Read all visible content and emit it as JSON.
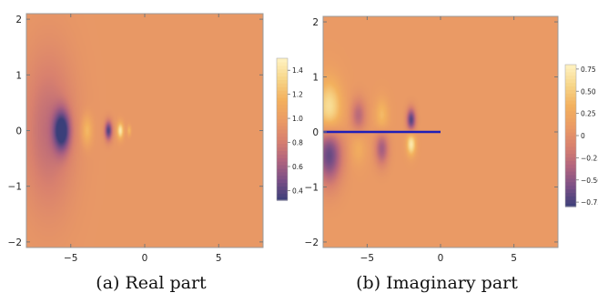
{
  "colors": {
    "colormap": [
      "#3a3f7a",
      "#7a4f86",
      "#b2647e",
      "#d9816e",
      "#eb9c64",
      "#f3b15e",
      "#f7d689",
      "#fff3c2"
    ],
    "frame": "#9a9a9a",
    "branch_cut": "#1f1fb8"
  },
  "chart_data": [
    {
      "type": "heatmap",
      "title": "",
      "caption": "(a) Real part",
      "xlim": [
        -8,
        8
      ],
      "ylim": [
        -2.1,
        2.1
      ],
      "xticks": [
        -5,
        0,
        5
      ],
      "yticks": [
        -2,
        -1,
        0,
        1,
        2
      ],
      "xtick_labels": [
        "−5",
        "0",
        "5"
      ],
      "ytick_labels": [
        "−2",
        "−1",
        "0",
        "1",
        "2"
      ],
      "background_value": 0.97,
      "features": [
        {
          "x": -5.6,
          "y": 0,
          "value": 0.33,
          "sx": 0.55,
          "sy": 0.36
        },
        {
          "x": -2.45,
          "y": 0,
          "value": 0.38,
          "sx": 0.25,
          "sy": 0.17
        },
        {
          "x": -3.9,
          "y": 0,
          "value": 1.22,
          "sx": 0.35,
          "sy": 0.26
        },
        {
          "x": -1.65,
          "y": 0,
          "value": 1.45,
          "sx": 0.2,
          "sy": 0.14
        },
        {
          "x": -1.05,
          "y": 0,
          "value": 1.2,
          "sx": 0.12,
          "sy": 0.09
        },
        {
          "x": -6.5,
          "y": 0,
          "value": 0.72,
          "sx": 1.7,
          "sy": 1.35
        }
      ],
      "colorbar": {
        "min": 0.32,
        "max": 1.5,
        "ticks": [
          0.4,
          0.6,
          0.8,
          1.0,
          1.2,
          1.4
        ],
        "tick_labels": [
          "0.4",
          "0.6",
          "0.8",
          "1.0",
          "1.2",
          "1.4"
        ]
      }
    },
    {
      "type": "heatmap",
      "title": "",
      "caption": "(b) Imaginary part",
      "xlim": [
        -8,
        8
      ],
      "ylim": [
        -2.1,
        2.1
      ],
      "xticks": [
        -5,
        0,
        5
      ],
      "yticks": [
        -2,
        -1,
        0,
        1,
        2
      ],
      "xtick_labels": [
        "−5",
        "0",
        "5"
      ],
      "ytick_labels": [
        "−2",
        "−1",
        "0",
        "1",
        "2"
      ],
      "background_value": 0.1,
      "features": [
        {
          "x": -7.6,
          "y": 0.35,
          "value": 0.75,
          "sx": 0.85,
          "sy": 0.55
        },
        {
          "x": -7.6,
          "y": -0.35,
          "value": -0.75,
          "sx": 0.85,
          "sy": 0.55
        },
        {
          "x": -4.0,
          "y": 0.3,
          "value": 0.4,
          "sx": 0.45,
          "sy": 0.3
        },
        {
          "x": -4.0,
          "y": -0.3,
          "value": -0.4,
          "sx": 0.45,
          "sy": 0.3
        },
        {
          "x": -2.0,
          "y": 0.22,
          "value": -0.7,
          "sx": 0.3,
          "sy": 0.2
        },
        {
          "x": -2.0,
          "y": -0.22,
          "value": 0.72,
          "sx": 0.3,
          "sy": 0.2
        },
        {
          "x": -5.6,
          "y": 0.3,
          "value": -0.3,
          "sx": 0.5,
          "sy": 0.3
        },
        {
          "x": -5.6,
          "y": -0.3,
          "value": 0.3,
          "sx": 0.5,
          "sy": 0.3
        }
      ],
      "branch_cut": {
        "x": [
          -8,
          0
        ],
        "y": 0
      },
      "colorbar": {
        "min": -0.8,
        "max": 0.8,
        "ticks": [
          -0.75,
          -0.5,
          -0.25,
          0,
          0.25,
          0.5,
          0.75
        ],
        "tick_labels": [
          "−0.75",
          "−0.50",
          "−0.25",
          "0",
          "0.25",
          "0.50",
          "0.75"
        ]
      }
    }
  ]
}
